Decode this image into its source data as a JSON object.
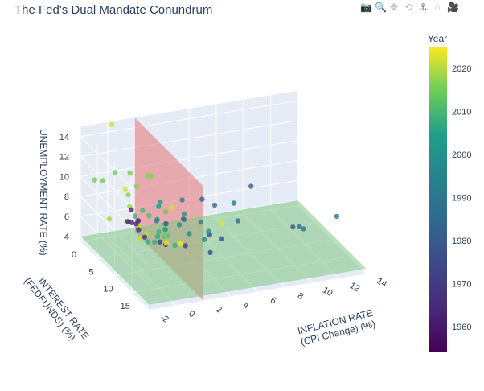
{
  "title": "The Fed's Dual Mandate Conundrum",
  "toolbar": [
    {
      "icon": "camera-icon",
      "label": "Download plot as a png"
    },
    {
      "icon": "zoom-icon",
      "label": "Zoom"
    },
    {
      "icon": "pan-icon",
      "label": "Pan"
    },
    {
      "icon": "orbit-rotation-icon",
      "label": "Orbital rotation"
    },
    {
      "icon": "turntable-rotation-icon",
      "label": "Turntable rotation"
    },
    {
      "icon": "home-icon",
      "label": "Reset camera"
    },
    {
      "icon": "camera-last-save-icon",
      "label": "Reset camera to last save"
    }
  ],
  "chart_data": {
    "type": "scatter3d",
    "title": "The Fed's Dual Mandate Conundrum",
    "x_axis": {
      "label_line1": "INFLATION RATE",
      "label_line2": "(CPI Change) (%)",
      "ticks": [
        "-2",
        "0",
        "2",
        "4",
        "6",
        "8",
        "10",
        "12",
        "14"
      ],
      "range": [
        -2,
        14
      ]
    },
    "y_axis": {
      "label_line1": "INTEREST RATE",
      "label_line2": "(FEDFUNDS) (%)",
      "ticks": [
        "0",
        "5",
        "10",
        "15"
      ],
      "range": [
        0,
        20
      ]
    },
    "z_axis": {
      "label": "UNEMPLOYMENT RATE (%)",
      "ticks": [
        "4",
        "6",
        "8",
        "10",
        "12",
        "14"
      ],
      "range": [
        3.5,
        15
      ]
    },
    "colorbar": {
      "title": "Year",
      "ticks": [
        "1960",
        "1970",
        "1980",
        "1990",
        "2000",
        "2010",
        "2020"
      ],
      "range": [
        1954,
        2025
      ],
      "colorscale": "viridis"
    },
    "planes": [
      {
        "name": "inflation target plane",
        "axis": "x",
        "value": 2,
        "color": "#e57373"
      },
      {
        "name": "unemployment target plane",
        "axis": "z",
        "value": 4,
        "color": "#81c784"
      }
    ],
    "points_columns": [
      "inflation",
      "fedfunds",
      "unemployment",
      "year"
    ],
    "points": [
      [
        1.0,
        2.0,
        5.5,
        1959
      ],
      [
        1.5,
        3.0,
        5.8,
        1960
      ],
      [
        1.2,
        2.2,
        6.7,
        1961
      ],
      [
        1.1,
        2.7,
        5.6,
        1962
      ],
      [
        1.3,
        3.2,
        5.6,
        1963
      ],
      [
        1.4,
        3.5,
        5.1,
        1964
      ],
      [
        1.7,
        4.1,
        4.5,
        1965
      ],
      [
        3.0,
        5.1,
        3.8,
        1966
      ],
      [
        2.8,
        4.2,
        3.8,
        1967
      ],
      [
        4.3,
        5.7,
        3.6,
        1968
      ],
      [
        5.5,
        8.2,
        3.5,
        1969
      ],
      [
        5.7,
        7.2,
        4.9,
        1970
      ],
      [
        4.4,
        4.7,
        5.9,
        1971
      ],
      [
        3.2,
        4.4,
        5.6,
        1972
      ],
      [
        6.2,
        8.7,
        4.9,
        1973
      ],
      [
        11.0,
        10.5,
        5.6,
        1974
      ],
      [
        9.1,
        5.8,
        8.5,
        1975
      ],
      [
        5.7,
        5.0,
        7.7,
        1976
      ],
      [
        6.5,
        5.5,
        7.1,
        1977
      ],
      [
        7.6,
        7.9,
        6.1,
        1978
      ],
      [
        11.3,
        11.2,
        5.8,
        1979
      ],
      [
        13.5,
        13.4,
        7.1,
        1980
      ],
      [
        10.3,
        16.4,
        7.6,
        1981
      ],
      [
        6.2,
        12.3,
        9.7,
        1982
      ],
      [
        3.2,
        9.1,
        9.6,
        1983
      ],
      [
        4.3,
        10.2,
        7.5,
        1984
      ],
      [
        3.6,
        8.1,
        7.2,
        1985
      ],
      [
        1.9,
        6.8,
        7.0,
        1986
      ],
      [
        3.6,
        6.7,
        6.2,
        1987
      ],
      [
        4.1,
        7.6,
        5.5,
        1988
      ],
      [
        4.8,
        9.2,
        5.3,
        1989
      ],
      [
        5.4,
        8.1,
        5.6,
        1990
      ],
      [
        4.2,
        5.7,
        6.8,
        1991
      ],
      [
        3.0,
        3.5,
        7.5,
        1992
      ],
      [
        3.0,
        3.0,
        6.9,
        1993
      ],
      [
        2.6,
        4.2,
        6.1,
        1994
      ],
      [
        2.8,
        5.8,
        5.6,
        1995
      ],
      [
        2.9,
        5.3,
        5.4,
        1996
      ],
      [
        2.3,
        5.5,
        4.9,
        1997
      ],
      [
        1.6,
        5.4,
        4.5,
        1998
      ],
      [
        2.2,
        5.0,
        4.2,
        1999
      ],
      [
        3.4,
        6.2,
        4.0,
        2000
      ],
      [
        2.8,
        3.9,
        4.7,
        2001
      ],
      [
        1.6,
        1.7,
        5.8,
        2002
      ],
      [
        2.3,
        1.1,
        6.0,
        2003
      ],
      [
        2.7,
        1.4,
        5.5,
        2004
      ],
      [
        3.4,
        3.2,
        5.1,
        2005
      ],
      [
        3.2,
        5.0,
        4.6,
        2006
      ],
      [
        2.9,
        5.0,
        4.6,
        2007
      ],
      [
        3.8,
        1.9,
        5.8,
        2008
      ],
      [
        -0.4,
        0.2,
        9.3,
        2009
      ],
      [
        1.6,
        0.2,
        9.6,
        2010
      ],
      [
        3.2,
        0.1,
        8.9,
        2011
      ],
      [
        2.1,
        0.1,
        8.1,
        2012
      ],
      [
        1.5,
        0.1,
        7.4,
        2013
      ],
      [
        1.6,
        0.1,
        6.2,
        2014
      ],
      [
        0.1,
        0.1,
        5.3,
        2015
      ],
      [
        1.3,
        0.4,
        4.9,
        2016
      ],
      [
        2.1,
        1.0,
        4.4,
        2017
      ],
      [
        2.4,
        1.8,
        3.9,
        2018
      ],
      [
        1.8,
        2.2,
        3.7,
        2019
      ],
      [
        1.2,
        0.4,
        8.1,
        2020
      ],
      [
        0.3,
        0.05,
        14.7,
        2020
      ],
      [
        4.7,
        0.1,
        5.4,
        2021
      ],
      [
        8.0,
        1.7,
        3.6,
        2022
      ],
      [
        4.1,
        5.0,
        3.6,
        2023
      ],
      [
        3.0,
        5.3,
        4.0,
        2024
      ],
      [
        -1.0,
        0.2,
        9.5,
        2009
      ],
      [
        0.5,
        0.2,
        9.9,
        2009
      ],
      [
        2.9,
        0.1,
        9.0,
        2011
      ]
    ]
  }
}
